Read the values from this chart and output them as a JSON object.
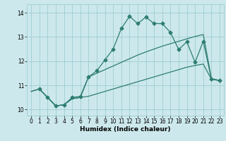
{
  "xlabel": "Humidex (Indice chaleur)",
  "xlim": [
    -0.5,
    23.5
  ],
  "ylim": [
    9.75,
    14.35
  ],
  "yticks": [
    10,
    11,
    12,
    13,
    14
  ],
  "xticks": [
    0,
    1,
    2,
    3,
    4,
    5,
    6,
    7,
    8,
    9,
    10,
    11,
    12,
    13,
    14,
    15,
    16,
    17,
    18,
    19,
    20,
    21,
    22,
    23
  ],
  "bg_color": "#cce8ec",
  "grid_color": "#9ecdd4",
  "line_color": "#2e7d72",
  "lines": [
    {
      "x": [
        0,
        1,
        2,
        3,
        4,
        5,
        6,
        7,
        8,
        9,
        10,
        11,
        12,
        13,
        14,
        15,
        16,
        17,
        18,
        19,
        20,
        21,
        22,
        23
      ],
      "y": [
        10.75,
        10.85,
        10.5,
        10.15,
        10.2,
        10.45,
        10.5,
        10.55,
        10.65,
        10.75,
        10.85,
        10.95,
        11.05,
        11.15,
        11.25,
        11.35,
        11.45,
        11.55,
        11.65,
        11.75,
        11.82,
        11.88,
        11.25,
        11.2
      ],
      "marker": false
    },
    {
      "x": [
        0,
        1,
        2,
        3,
        4,
        5,
        6,
        7,
        8,
        9,
        10,
        11,
        12,
        13,
        14,
        15,
        16,
        17,
        18,
        19,
        20,
        21,
        22,
        23
      ],
      "y": [
        10.75,
        10.85,
        10.5,
        10.15,
        10.2,
        10.45,
        10.5,
        11.35,
        11.5,
        11.65,
        11.8,
        11.95,
        12.1,
        12.25,
        12.38,
        12.5,
        12.62,
        12.72,
        12.82,
        12.92,
        13.02,
        13.1,
        11.28,
        11.2
      ],
      "marker": false
    },
    {
      "x": [
        1,
        2,
        3,
        4,
        5,
        6,
        7,
        8,
        9,
        10,
        11,
        12,
        13,
        14,
        15,
        16,
        17,
        18,
        19,
        20,
        21,
        22,
        23
      ],
      "y": [
        10.85,
        10.5,
        10.15,
        10.2,
        10.5,
        10.55,
        11.35,
        11.6,
        12.05,
        12.5,
        13.35,
        13.85,
        13.55,
        13.82,
        13.55,
        13.55,
        13.18,
        12.48,
        12.8,
        11.95,
        12.82,
        11.25,
        11.2
      ],
      "marker": true
    }
  ]
}
